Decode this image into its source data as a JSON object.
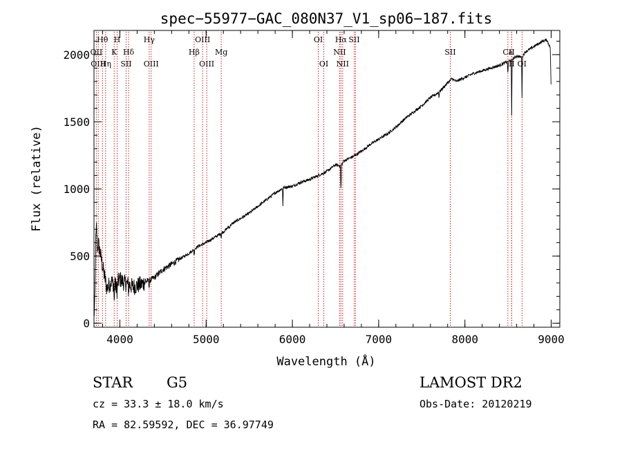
{
  "chart_data": {
    "type": "line",
    "title": "spec−55977−GAC_080N37_V1_sp06−187.fits",
    "xlabel": "Wavelength (Å)",
    "ylabel": "Flux (relative)",
    "xlim": [
      3700,
      9100
    ],
    "ylim": [
      -30,
      2180
    ],
    "xticks": [
      4000,
      5000,
      6000,
      7000,
      8000,
      9000
    ],
    "xtick_labels": [
      "4000",
      "5000",
      "6000",
      "7000",
      "8000",
      "9000"
    ],
    "yticks": [
      0,
      500,
      1000,
      1500,
      2000
    ],
    "ytick_labels": [
      "0",
      "500",
      "1000",
      "1500",
      "2000"
    ],
    "grid": false,
    "series": [
      {
        "x": [
          3700,
          3710,
          3720,
          3730,
          3740,
          3750,
          3800,
          3850,
          3900,
          3950,
          4000,
          4050,
          4100,
          4150,
          4200,
          4250,
          4300,
          4350,
          4400,
          4450,
          4500,
          4600,
          4700,
          4800,
          4900,
          5000,
          5100,
          5200,
          5300,
          5400,
          5500,
          5600,
          5700,
          5800,
          5900,
          6000,
          6100,
          6200,
          6300,
          6400,
          6500,
          6560,
          6600,
          6700,
          6800,
          6900,
          7000,
          7100,
          7200,
          7300,
          7400,
          7500,
          7600,
          7700,
          7800,
          7850,
          7900,
          8000,
          8100,
          8200,
          8300,
          8400,
          8500,
          8540,
          8600,
          8660,
          8700,
          8800,
          8850,
          8900,
          8950,
          8990,
          9000
        ],
        "y": [
          50,
          150,
          600,
          720,
          550,
          600,
          420,
          260,
          310,
          280,
          330,
          300,
          290,
          270,
          280,
          290,
          310,
          320,
          340,
          370,
          400,
          440,
          480,
          520,
          570,
          600,
          640,
          680,
          740,
          780,
          820,
          870,
          920,
          970,
          1010,
          1020,
          1050,
          1070,
          1100,
          1130,
          1180,
          1170,
          1210,
          1240,
          1280,
          1330,
          1370,
          1410,
          1460,
          1520,
          1570,
          1620,
          1680,
          1720,
          1790,
          1820,
          1800,
          1830,
          1860,
          1880,
          1900,
          1920,
          1950,
          1960,
          1990,
          1980,
          2020,
          2060,
          2080,
          2100,
          2110,
          2050,
          1700
        ],
        "features": [
          {
            "x": 3934,
            "depth": 140
          },
          {
            "x": 3968,
            "depth": 120
          },
          {
            "x": 4101,
            "depth": 60
          },
          {
            "x": 4340,
            "depth": 60
          },
          {
            "x": 4861,
            "depth": 50
          },
          {
            "x": 5175,
            "depth": 40
          },
          {
            "x": 5270,
            "depth": 20
          },
          {
            "x": 5890,
            "depth": 130
          },
          {
            "x": 6563,
            "depth": 200
          },
          {
            "x": 7700,
            "depth": 40
          },
          {
            "x": 8498,
            "depth": 110
          },
          {
            "x": 8542,
            "depth": 420
          },
          {
            "x": 8662,
            "depth": 300
          }
        ]
      }
    ],
    "line_markers": [
      {
        "x": 3727,
        "row": 1,
        "label": "OII"
      },
      {
        "x": 3750,
        "row": 2,
        "label": "OIII"
      },
      {
        "x": 3798,
        "row": 0,
        "label": "Hθ"
      },
      {
        "x": 3835,
        "row": 2,
        "label": "Hη"
      },
      {
        "x": 3934,
        "row": 1,
        "label": "K"
      },
      {
        "x": 3968,
        "row": 0,
        "label": "H"
      },
      {
        "x": 4072,
        "row": 2,
        "label": "SII"
      },
      {
        "x": 4101,
        "row": 1,
        "label": "Hδ"
      },
      {
        "x": 4340,
        "row": 0,
        "label": "Hγ"
      },
      {
        "x": 4363,
        "row": 2,
        "label": "OIII"
      },
      {
        "x": 4861,
        "row": 1,
        "label": "Hβ"
      },
      {
        "x": 4959,
        "row": 0,
        "label": "OIII"
      },
      {
        "x": 5007,
        "row": 2,
        "label": "OIII"
      },
      {
        "x": 5175,
        "row": 1,
        "label": "Mg"
      },
      {
        "x": 6300,
        "row": 0,
        "label": "OI"
      },
      {
        "x": 6364,
        "row": 2,
        "label": "OI"
      },
      {
        "x": 6548,
        "row": 1,
        "label": "NII"
      },
      {
        "x": 6563,
        "row": 0,
        "label": "Hα"
      },
      {
        "x": 6583,
        "row": 2,
        "label": "NII"
      },
      {
        "x": 6716,
        "row": 0,
        "label": "SII"
      },
      {
        "x": 6731,
        "row": 0,
        "label": ""
      },
      {
        "x": 7830,
        "row": 1,
        "label": "SII"
      },
      {
        "x": 8498,
        "row": 1,
        "label": "Ca"
      },
      {
        "x": 8542,
        "row": 1,
        "label": "II"
      },
      {
        "x": 8662,
        "row": 2,
        "label": "OI"
      },
      {
        "x": 8542,
        "row": 2,
        "label": "II"
      }
    ]
  },
  "info": {
    "object_class": "STAR",
    "subclass": "G5",
    "survey": "LAMOST DR2",
    "cz": "cz = 33.3 ± 18.0 km/s",
    "obs_date": "Obs-Date: 20120219",
    "coords": "RA =  82.59592, DEC =  36.97749"
  },
  "colors": {
    "spectrum": "#000000",
    "marker_line": "#cc0000",
    "axis": "#000000"
  }
}
